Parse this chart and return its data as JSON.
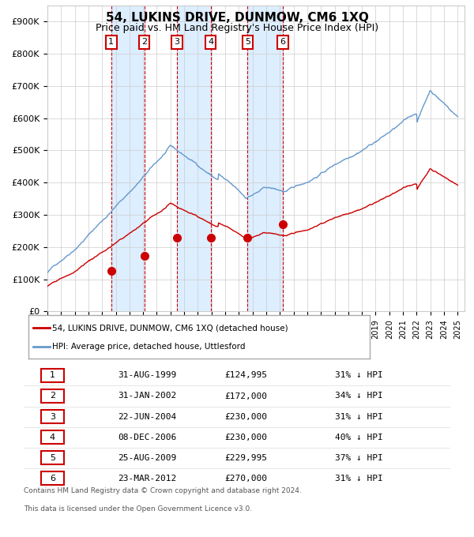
{
  "title": "54, LUKINS DRIVE, DUNMOW, CM6 1XQ",
  "subtitle": "Price paid vs. HM Land Registry's House Price Index (HPI)",
  "footer1": "Contains HM Land Registry data © Crown copyright and database right 2024.",
  "footer2": "This data is licensed under the Open Government Licence v3.0.",
  "legend_red": "54, LUKINS DRIVE, DUNMOW, CM6 1XQ (detached house)",
  "legend_blue": "HPI: Average price, detached house, Uttlesford",
  "xlim_left": 1995.0,
  "xlim_right": 2025.5,
  "ylim_bottom": 0,
  "ylim_top": 950000,
  "yticks": [
    0,
    100000,
    200000,
    300000,
    400000,
    500000,
    600000,
    700000,
    800000,
    900000
  ],
  "ytick_labels": [
    "£0",
    "£100K",
    "£200K",
    "£300K",
    "£400K",
    "£500K",
    "£600K",
    "£700K",
    "£800K",
    "£900K"
  ],
  "sales": [
    {
      "num": 1,
      "year": 1999.664,
      "price": 124995,
      "label": "1",
      "date": "31-AUG-1999",
      "price_str": "£124,995",
      "pct": "31%"
    },
    {
      "num": 2,
      "year": 2002.08,
      "price": 172000,
      "label": "2",
      "date": "31-JAN-2002",
      "price_str": "£172,000",
      "pct": "34%"
    },
    {
      "num": 3,
      "year": 2004.47,
      "price": 230000,
      "label": "3",
      "date": "22-JUN-2004",
      "price_str": "£230,000",
      "pct": "31%"
    },
    {
      "num": 4,
      "year": 2006.93,
      "price": 230000,
      "label": "4",
      "date": "08-DEC-2006",
      "price_str": "£230,000",
      "pct": "40%"
    },
    {
      "num": 5,
      "year": 2009.64,
      "price": 229995,
      "label": "5",
      "date": "25-AUG-2009",
      "price_str": "£229,995",
      "pct": "37%"
    },
    {
      "num": 6,
      "year": 2012.22,
      "price": 270000,
      "label": "6",
      "date": "23-MAR-2012",
      "price_str": "£270,000",
      "pct": "31%"
    }
  ],
  "red_color": "#cc0000",
  "blue_color": "#6699cc",
  "shade_color": "#ddeeff",
  "grid_color": "#cccccc",
  "dashed_color": "#cc0000",
  "bg_color": "#ffffff",
  "table_box_color": "#cc0000"
}
